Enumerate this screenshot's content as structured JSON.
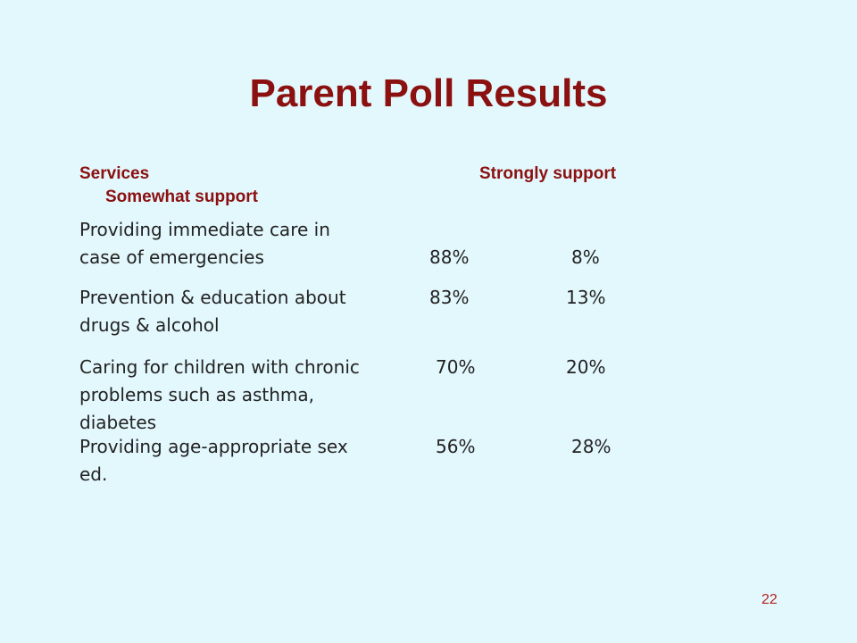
{
  "slide": {
    "title": "Parent Poll Results",
    "page_number": "22"
  },
  "table": {
    "headers": {
      "services": "Services",
      "strongly_support": "Strongly support",
      "somewhat_support": "Somewhat support"
    },
    "rows": [
      {
        "service_line1": "Providing immediate care in",
        "service_line2": "case of emergencies",
        "service_line3": "",
        "strongly": "88%",
        "somewhat": "8%"
      },
      {
        "service_line1": "Prevention & education about",
        "service_line2": "drugs & alcohol",
        "service_line3": "",
        "strongly": "83%",
        "somewhat": "13%"
      },
      {
        "service_line1": "Caring for children with chronic",
        "service_line2": "problems such as asthma,",
        "service_line3": "diabetes",
        "strongly": "70%",
        "somewhat": "20%"
      },
      {
        "service_line1": "Providing age-appropriate sex",
        "service_line2": "ed.",
        "service_line3": "",
        "strongly": "56%",
        "somewhat": "28%"
      }
    ]
  },
  "colors": {
    "background": "#e3f8fd",
    "title": "#8b1010",
    "body_text": "#222222"
  }
}
